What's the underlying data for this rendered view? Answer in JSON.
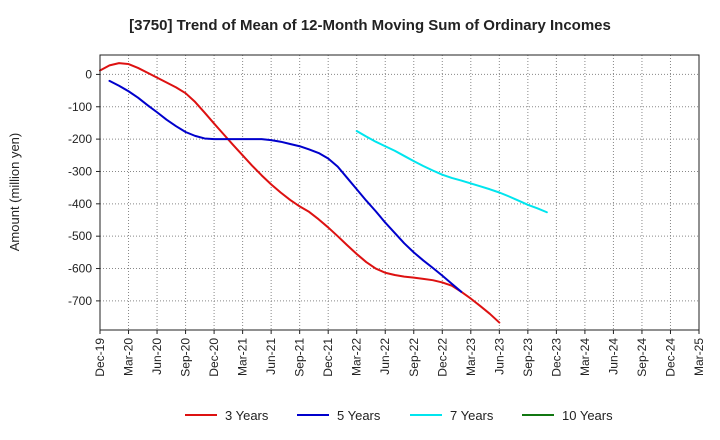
{
  "chart_data": {
    "type": "line",
    "title": "[3750]  Trend of Mean of 12-Month Moving Sum of Ordinary Incomes",
    "xlabel": "",
    "ylabel": "Amount (million yen)",
    "ylim": [
      -790,
      60
    ],
    "yticks": [
      0,
      -100,
      -200,
      -300,
      -400,
      -500,
      -600,
      -700
    ],
    "x_tick_labels": [
      "Dec-19",
      "Mar-20",
      "Jun-20",
      "Sep-20",
      "Dec-20",
      "Mar-21",
      "Jun-21",
      "Sep-21",
      "Dec-21",
      "Mar-22",
      "Jun-22",
      "Sep-22",
      "Dec-22",
      "Mar-23",
      "Jun-23",
      "Sep-23",
      "Dec-23",
      "Mar-24",
      "Jun-24",
      "Sep-24",
      "Dec-24",
      "Mar-25"
    ],
    "grid": true,
    "legend_position": "bottom",
    "series": [
      {
        "name": "3 Years",
        "color": "#dd1111",
        "start_index": 0,
        "values": [
          12,
          28,
          35,
          32,
          20,
          5,
          -10,
          -25,
          -40,
          -58,
          -85,
          -118,
          -152,
          -185,
          -218,
          -250,
          -282,
          -312,
          -340,
          -365,
          -388,
          -408,
          -425,
          -448,
          -473,
          -500,
          -528,
          -555,
          -580,
          -600,
          -613,
          -620,
          -625,
          -628,
          -632,
          -636,
          -643,
          -653,
          -672,
          -693,
          -716,
          -740,
          -767
        ]
      },
      {
        "name": "5 Years",
        "color": "#0000cc",
        "start_index": 1,
        "values": [
          -20,
          -35,
          -52,
          -72,
          -95,
          -117,
          -140,
          -160,
          -178,
          -190,
          -198,
          -200,
          -200,
          -200,
          -200,
          -200,
          -200,
          -203,
          -208,
          -215,
          -222,
          -232,
          -243,
          -260,
          -285,
          -320,
          -355,
          -390,
          -423,
          -458,
          -490,
          -522,
          -550,
          -575,
          -598,
          -622,
          -647,
          -672
        ]
      },
      {
        "name": "7 Years",
        "color": "#00e5ee",
        "start_index": 27,
        "values": [
          -175,
          -192,
          -208,
          -222,
          -236,
          -252,
          -268,
          -283,
          -297,
          -310,
          -320,
          -328,
          -337,
          -346,
          -355,
          -365,
          -377,
          -390,
          -403,
          -414,
          -426
        ]
      },
      {
        "name": "10 Years",
        "color": "#117711",
        "start_index": 0,
        "values": []
      }
    ]
  }
}
